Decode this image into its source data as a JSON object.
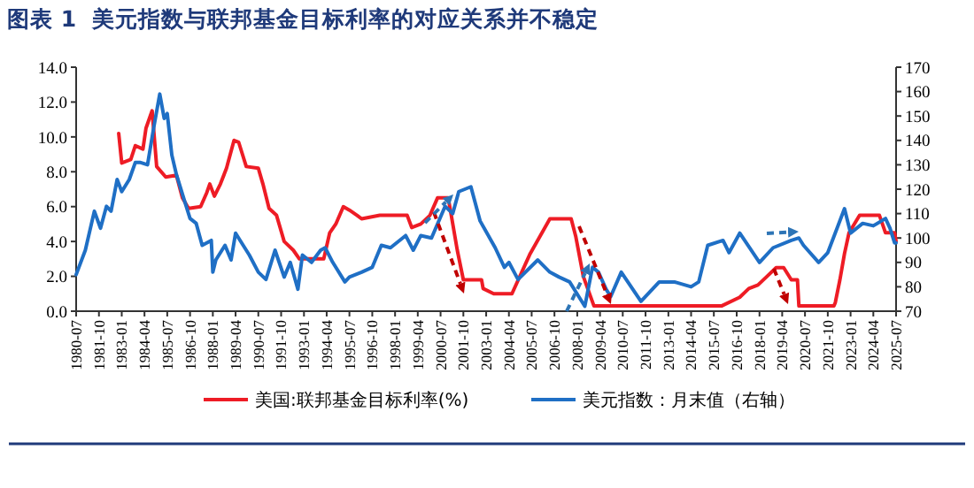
{
  "chart_data": {
    "type": "line",
    "title": "图表 1  美元指数与联邦基金目标利率的对应关系并不稳定",
    "xlim": [
      "1980-07",
      "2025-07"
    ],
    "xticks": [
      "1980-07",
      "1981-10",
      "1983-01",
      "1984-04",
      "1985-07",
      "1986-10",
      "1988-01",
      "1989-04",
      "1990-07",
      "1991-10",
      "1993-01",
      "1994-04",
      "1995-07",
      "1996-10",
      "1998-01",
      "1999-04",
      "2000-07",
      "2001-10",
      "2003-01",
      "2004-04",
      "2005-07",
      "2006-10",
      "2008-01",
      "2009-04",
      "2010-07",
      "2011-10",
      "2013-01",
      "2014-04",
      "2015-07",
      "2016-10",
      "2018-01",
      "2019-04",
      "2020-07",
      "2021-10",
      "2023-01",
      "2024-04",
      "2025-07"
    ],
    "ylim": [
      0,
      14
    ],
    "yticks": [
      {
        "value": 0,
        "label": "0.0"
      },
      {
        "value": 2,
        "label": "2.0"
      },
      {
        "value": 4,
        "label": "4.0"
      },
      {
        "value": 6,
        "label": "6.0"
      },
      {
        "value": 8,
        "label": "8.0"
      },
      {
        "value": 10,
        "label": "10.0"
      },
      {
        "value": 12,
        "label": "12.0"
      },
      {
        "value": 14,
        "label": "14.0"
      }
    ],
    "y2lim": [
      70,
      170
    ],
    "y2ticks": [
      70,
      80,
      90,
      100,
      110,
      120,
      130,
      140,
      150,
      160,
      170
    ],
    "legend": "bottom",
    "series": [
      {
        "name": "美国:联邦基金目标利率(%)",
        "color": "#ee1c25",
        "x": [
          "1982-11",
          "1983-01",
          "1983-07",
          "1983-10",
          "1984-03",
          "1984-05",
          "1984-09",
          "1984-12",
          "1985-06",
          "1986-01",
          "1986-05",
          "1986-09",
          "1987-05",
          "1987-09",
          "1987-11",
          "1988-02",
          "1988-06",
          "1988-10",
          "1989-03",
          "1989-06",
          "1989-11",
          "1990-07",
          "1990-10",
          "1991-02",
          "1991-07",
          "1991-12",
          "1992-06",
          "1992-10",
          "1994-02",
          "1994-06",
          "1994-10",
          "1995-03",
          "1995-07",
          "1995-12",
          "1996-03",
          "1997-03",
          "1998-09",
          "1998-12",
          "1999-06",
          "1999-12",
          "2000-05",
          "2000-12",
          "2001-02",
          "2001-06",
          "2001-10",
          "2002-10",
          "2002-11",
          "2003-06",
          "2004-06",
          "2005-06",
          "2006-07",
          "2007-09",
          "2007-12",
          "2008-05",
          "2008-12",
          "2015-12",
          "2016-12",
          "2017-06",
          "2017-12",
          "2018-06",
          "2018-12",
          "2019-05",
          "2019-10",
          "2020-02",
          "2020-03",
          "2022-02",
          "2022-03",
          "2022-06",
          "2022-09",
          "2022-12",
          "2023-07",
          "2024-08",
          "2024-12",
          "2025-06",
          "2025-07"
        ],
        "values": [
          10.2,
          8.5,
          8.7,
          9.5,
          9.3,
          10.5,
          11.5,
          8.3,
          7.7,
          7.8,
          6.5,
          5.9,
          6.0,
          6.8,
          7.3,
          6.6,
          7.3,
          8.2,
          9.8,
          9.7,
          8.3,
          8.2,
          7.3,
          5.9,
          5.5,
          4.0,
          3.5,
          3.0,
          3.0,
          4.5,
          5.0,
          6.0,
          5.8,
          5.5,
          5.3,
          5.5,
          5.5,
          4.8,
          5.0,
          5.5,
          6.5,
          6.5,
          5.5,
          3.5,
          1.8,
          1.8,
          1.3,
          1.0,
          1.0,
          3.3,
          5.3,
          5.3,
          4.3,
          2.0,
          0.3,
          0.3,
          0.8,
          1.3,
          1.5,
          2.0,
          2.5,
          2.5,
          1.8,
          1.8,
          0.3,
          0.3,
          0.5,
          1.8,
          3.3,
          4.5,
          5.5,
          5.5,
          4.5,
          4.5,
          4.0
        ]
      },
      {
        "name": "美元指数：月末值（右轴）",
        "color": "#1f6fc5",
        "axis": "y2",
        "x": [
          "1980-07",
          "1981-01",
          "1981-07",
          "1981-11",
          "1982-03",
          "1982-06",
          "1982-10",
          "1983-01",
          "1983-06",
          "1983-10",
          "1984-01",
          "1984-06",
          "1984-10",
          "1985-02",
          "1985-05",
          "1985-07",
          "1985-10",
          "1986-01",
          "1986-06",
          "1986-10",
          "1987-02",
          "1987-06",
          "1987-12",
          "1988-01",
          "1988-03",
          "1988-09",
          "1989-01",
          "1989-04",
          "1989-07",
          "1990-01",
          "1990-07",
          "1990-12",
          "1991-06",
          "1991-12",
          "1992-04",
          "1992-09",
          "1992-12",
          "1993-06",
          "1993-12",
          "1994-03",
          "1994-08",
          "1995-04",
          "1995-07",
          "1996-03",
          "1996-10",
          "1997-04",
          "1997-10",
          "1998-08",
          "1999-01",
          "1999-06",
          "2000-01",
          "2000-10",
          "2001-03",
          "2001-07",
          "2002-03",
          "2002-09",
          "2003-07",
          "2004-01",
          "2004-04",
          "2004-10",
          "2005-11",
          "2006-07",
          "2007-01",
          "2007-08",
          "2008-02",
          "2008-06",
          "2008-11",
          "2009-03",
          "2009-08",
          "2009-11",
          "2010-06",
          "2011-07",
          "2012-07",
          "2013-05",
          "2014-04",
          "2014-09",
          "2015-03",
          "2016-01",
          "2016-05",
          "2016-12",
          "2018-01",
          "2018-10",
          "2019-10",
          "2020-03",
          "2020-06",
          "2021-04",
          "2021-10",
          "2022-09",
          "2023-01",
          "2023-09",
          "2024-04",
          "2024-12",
          "2025-03",
          "2025-06",
          "2025-07"
        ],
        "values": [
          85,
          95,
          111,
          104,
          113,
          111,
          124,
          119,
          124,
          131,
          131,
          130,
          145,
          159,
          149,
          151,
          134,
          126,
          116,
          108,
          106,
          97,
          99,
          86,
          91,
          97,
          91,
          102,
          99,
          93,
          86,
          83,
          95,
          84,
          90,
          79,
          93,
          90,
          95,
          96,
          90,
          82,
          84,
          86,
          88,
          97,
          96,
          101,
          95,
          101,
          100,
          113,
          110,
          119,
          121,
          107,
          96,
          88,
          90,
          83,
          91,
          86,
          84,
          82,
          76,
          72,
          88,
          86,
          79,
          76,
          86,
          74,
          82,
          82,
          80,
          82,
          97,
          99,
          94,
          102,
          90,
          96,
          99,
          100,
          97,
          90,
          94,
          112,
          102,
          106,
          105,
          108,
          104,
          98,
          98
        ]
      }
    ]
  }
}
